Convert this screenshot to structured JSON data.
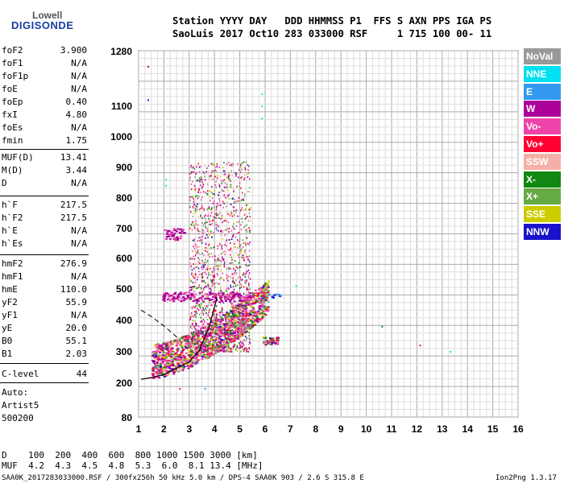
{
  "logo": {
    "line1": "Lowell",
    "line2": "DIGISONDE"
  },
  "header": {
    "line1": "Station YYYY DAY   DDD HHMMSS P1  FFS S AXN PPS IGA PS",
    "line2": "SaoLuis 2017 Oct10 283 033000 RSF     1 715 100 00- 11"
  },
  "params": [
    {
      "k": "foF2",
      "v": "3.900"
    },
    {
      "k": "foF1",
      "v": "N/A"
    },
    {
      "k": "foF1p",
      "v": "N/A"
    },
    {
      "k": "foE",
      "v": "N/A"
    },
    {
      "k": "foEp",
      "v": "0.40"
    },
    {
      "k": "fxI",
      "v": "4.80"
    },
    {
      "k": "foEs",
      "v": "N/A"
    },
    {
      "k": "fmin",
      "v": "1.75"
    },
    {
      "k": "MUF(D)",
      "v": "13.41"
    },
    {
      "k": "M(D)",
      "v": "3.44"
    },
    {
      "k": "D",
      "v": "N/A"
    },
    {
      "k": "h`F",
      "v": "217.5"
    },
    {
      "k": "h`F2",
      "v": "217.5"
    },
    {
      "k": "h`E",
      "v": "N/A"
    },
    {
      "k": "h`Es",
      "v": "N/A"
    },
    {
      "k": "hmF2",
      "v": "276.9"
    },
    {
      "k": "hmF1",
      "v": "N/A"
    },
    {
      "k": "hmE",
      "v": "110.0"
    },
    {
      "k": "yF2",
      "v": "55.9"
    },
    {
      "k": "yF1",
      "v": "N/A"
    },
    {
      "k": "yE",
      "v": "20.0"
    },
    {
      "k": "B0",
      "v": "55.1"
    },
    {
      "k": "B1",
      "v": "2.03"
    },
    {
      "k": "C-level",
      "v": "44"
    }
  ],
  "auto": {
    "l1": "Auto:",
    "l2": "Artist5",
    "l3": "500200"
  },
  "legend": [
    {
      "label": "NoVal",
      "color": "#999999"
    },
    {
      "label": "NNE",
      "color": "#00e0f0"
    },
    {
      "label": "E",
      "color": "#3399ee"
    },
    {
      "label": "W",
      "color": "#aa0099"
    },
    {
      "label": "Vo-",
      "color": "#ee44aa"
    },
    {
      "label": "Vo+",
      "color": "#ff0033"
    },
    {
      "label": "SSW",
      "color": "#f4b0a8"
    },
    {
      "label": "X-",
      "color": "#118811"
    },
    {
      "label": "X+",
      "color": "#66aa44"
    },
    {
      "label": "SSE",
      "color": "#cccc00"
    },
    {
      "label": "NNW",
      "color": "#1a11cc"
    }
  ],
  "chart_data": {
    "type": "scatter",
    "x_ticks": [
      1,
      2,
      3,
      4,
      5,
      6,
      7,
      8,
      9,
      10,
      11,
      12,
      13,
      14,
      15,
      16
    ],
    "y_ticks": [
      80,
      200,
      300,
      400,
      500,
      600,
      700,
      800,
      900,
      1000,
      1100,
      1280
    ],
    "xlim": [
      1,
      16
    ],
    "ylim": [
      80,
      1280
    ],
    "y_scale": "nonlinear (virtual height)",
    "grid": true,
    "trace_curve": {
      "x": [
        1.1,
        1.5,
        2.0,
        2.5,
        3.0,
        3.4,
        3.8,
        4.1
      ],
      "y": [
        210,
        215,
        225,
        245,
        265,
        300,
        380,
        470
      ]
    },
    "dashed_curve": {
      "x": [
        1.1,
        1.5,
        2.0,
        2.5,
        3.0
      ],
      "y": [
        430,
        410,
        380,
        345,
        300
      ]
    }
  },
  "bottom": {
    "d_row": "D    100  200  400  600  800 1000 1500 3000 [km]",
    "muf_row": "MUF  4.2  4.3  4.5  4.8  5.3  6.0  8.1 13.4 [MHz]",
    "footer_left": "SAA0K_2017283033000.RSF / 300fx256h 50 kHz 5.0 km / DPS-4 SAA0K 903 / 2.6 S 315.8 E",
    "footer_right": "Ion2Png 1.3.17"
  }
}
